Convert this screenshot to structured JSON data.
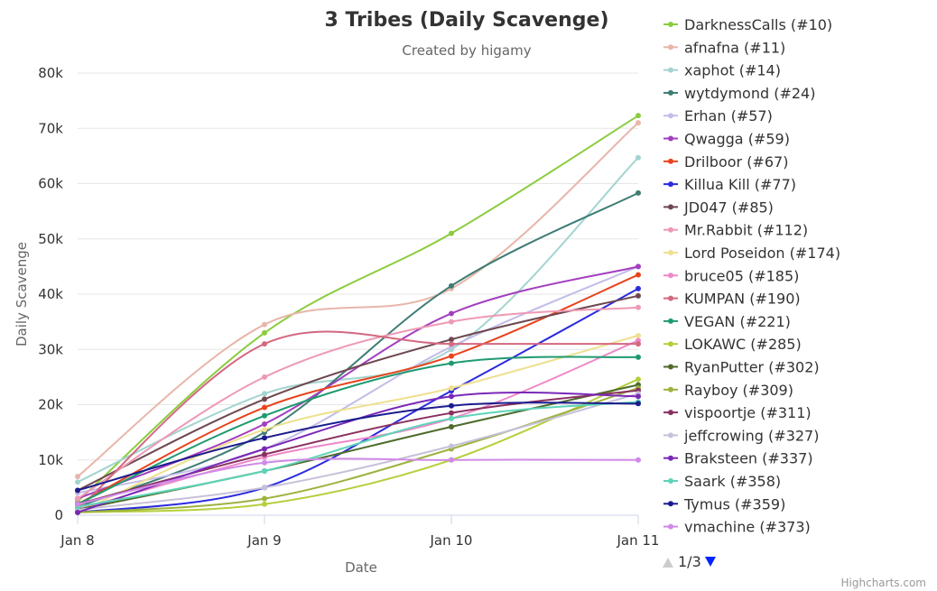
{
  "chart_data": {
    "type": "line",
    "title": "3 Tribes (Daily Scavenge)",
    "subtitle": "Created by higamy",
    "xlabel": "Date",
    "ylabel": "Daily Scavenge",
    "categories": [
      "Jan 8",
      "Jan 9",
      "Jan 10",
      "Jan 11"
    ],
    "ylim": [
      0,
      80000
    ],
    "yticks": [
      0,
      10000,
      20000,
      30000,
      40000,
      50000,
      60000,
      70000,
      80000
    ],
    "ytick_labels": [
      "0",
      "10k",
      "20k",
      "30k",
      "40k",
      "50k",
      "60k",
      "70k",
      "80k"
    ],
    "grid": true,
    "legend_position": "right",
    "legend_page": "1/3",
    "credits": "Highcharts.com",
    "series": [
      {
        "name": "DarknessCalls (#10)",
        "color": "#8bcc3f",
        "values": [
          2500,
          33000,
          51000,
          72300
        ]
      },
      {
        "name": "afnafna (#11)",
        "color": "#e8b6aa",
        "values": [
          7000,
          34500,
          41000,
          71000
        ]
      },
      {
        "name": "xaphot (#14)",
        "color": "#a3d4cf",
        "values": [
          6000,
          22000,
          30000,
          64700
        ]
      },
      {
        "name": "wytdymond (#24)",
        "color": "#3e7c74",
        "values": [
          1500,
          15000,
          41500,
          58300
        ]
      },
      {
        "name": "Erhan (#57)",
        "color": "#c3bde8",
        "values": [
          4000,
          12000,
          30500,
          45000
        ]
      },
      {
        "name": "Qwagga (#59)",
        "color": "#a33fbf",
        "values": [
          3000,
          16500,
          36500,
          45000
        ]
      },
      {
        "name": "Drilboor (#67)",
        "color": "#e8431c",
        "values": [
          2000,
          19500,
          28800,
          43500
        ]
      },
      {
        "name": "Killua Kill (#77)",
        "color": "#2b2bdf",
        "values": [
          500,
          5000,
          22500,
          41000
        ]
      },
      {
        "name": "JD047 (#85)",
        "color": "#6e4850",
        "values": [
          4500,
          21000,
          31800,
          39700
        ]
      },
      {
        "name": "Mr.Rabbit (#112)",
        "color": "#ee9ab5",
        "values": [
          3000,
          25000,
          35000,
          37600
        ]
      },
      {
        "name": "Lord Poseidon (#174)",
        "color": "#eee08f",
        "values": [
          500,
          15500,
          23000,
          32500
        ]
      },
      {
        "name": "bruce05 (#185)",
        "color": "#ee88c8",
        "values": [
          1000,
          10500,
          17500,
          31600
        ]
      },
      {
        "name": "KUMPAN (#190)",
        "color": "#d46880",
        "values": [
          1000,
          31000,
          31000,
          31000
        ]
      },
      {
        "name": "VEGAN (#221)",
        "color": "#1e9a70",
        "values": [
          2000,
          18000,
          27500,
          28600
        ]
      },
      {
        "name": "LOKAWC (#285)",
        "color": "#b5cf3c",
        "values": [
          500,
          2000,
          10000,
          24600
        ]
      },
      {
        "name": "RyanPutter (#302)",
        "color": "#4e6b2c",
        "values": [
          1000,
          8000,
          16000,
          23600
        ]
      },
      {
        "name": "Rayboy (#309)",
        "color": "#9cb33e",
        "values": [
          500,
          3000,
          12000,
          23000
        ]
      },
      {
        "name": "vispoortje (#311)",
        "color": "#8a3060",
        "values": [
          2000,
          11000,
          18500,
          22600
        ]
      },
      {
        "name": "jeffcrowing (#327)",
        "color": "#c7c0d8",
        "values": [
          1000,
          5000,
          12500,
          22000
        ]
      },
      {
        "name": "Braksteen (#337)",
        "color": "#7a28b8",
        "values": [
          500,
          12000,
          21500,
          21500
        ]
      },
      {
        "name": "Saark (#358)",
        "color": "#5ed4b8",
        "values": [
          1500,
          8000,
          17500,
          20500
        ]
      },
      {
        "name": "Tymus (#359)",
        "color": "#1b1b8f",
        "values": [
          4500,
          14000,
          19800,
          20200
        ]
      },
      {
        "name": "vmachine (#373)",
        "color": "#d08ae8",
        "values": [
          2000,
          9500,
          10000,
          10000
        ]
      }
    ]
  }
}
